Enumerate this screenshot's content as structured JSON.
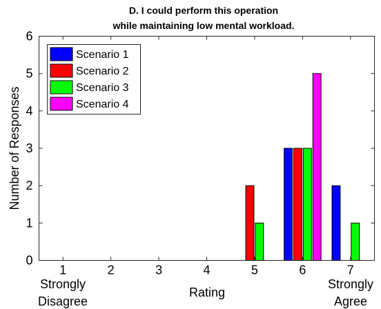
{
  "chart_data": {
    "type": "bar",
    "title": "D. I could perform this operation",
    "subtitle": "while maintaining low mental workload.",
    "xlabel": "Rating",
    "ylabel": "Number of Responses",
    "categories": [
      "1",
      "2",
      "3",
      "4",
      "5",
      "6",
      "7"
    ],
    "category_notes": {
      "low": [
        "Strongly",
        "Disagree"
      ],
      "high": [
        "Strongly",
        "Agree"
      ]
    },
    "ylim": [
      0,
      6
    ],
    "yticks": [
      "0",
      "1",
      "2",
      "3",
      "4",
      "5",
      "6"
    ],
    "grid": false,
    "legend_position": "top-left",
    "series": [
      {
        "name": "Scenario 1",
        "color": "#0000ff",
        "values": [
          0,
          0,
          0,
          0,
          0,
          3,
          2
        ]
      },
      {
        "name": "Scenario 2",
        "color": "#ff0000",
        "values": [
          0,
          0,
          0,
          0,
          2,
          3,
          0
        ]
      },
      {
        "name": "Scenario 3",
        "color": "#00ff00",
        "values": [
          0,
          0,
          0,
          0,
          1,
          3,
          1
        ]
      },
      {
        "name": "Scenario 4",
        "color": "#ff00ff",
        "values": [
          0,
          0,
          0,
          0,
          0,
          5,
          0
        ]
      }
    ]
  }
}
